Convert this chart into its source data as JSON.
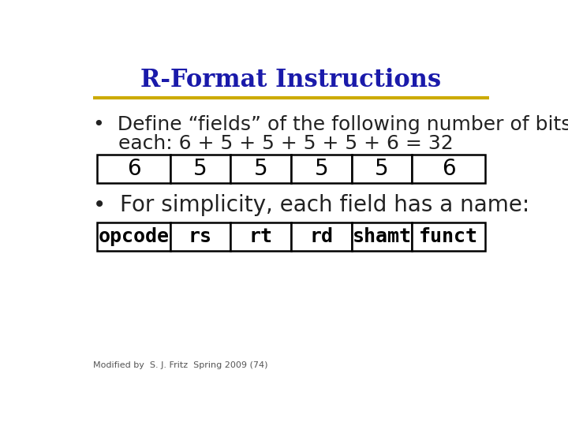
{
  "title": "R-Format Instructions",
  "title_color": "#1a1aaa",
  "title_fontsize": 22,
  "underline_color": "#ccaa00",
  "bullet1_line1": "•  Define “fields” of the following number of bits",
  "bullet1_line2": "    each: 6 + 5 + 5 + 5 + 5 + 6 = 32",
  "bullet1_color": "#222222",
  "fields_color": "#0000cc",
  "bullet2_text": "•  For simplicity, each field has a name:",
  "bullet2_color": "#222222",
  "table1_values": [
    "6",
    "5",
    "5",
    "5",
    "5",
    "6"
  ],
  "table2_values": [
    "opcode",
    "rs",
    "rt",
    "rd",
    "shamt",
    "funct"
  ],
  "table_text_color": "#000000",
  "table_bg_color": "#ffffff",
  "table_border_color": "#000000",
  "footer_text": "Modified by  S. J. Fritz  Spring 2009 (74)",
  "footer_color": "#555555",
  "footer_fontsize": 8,
  "bg_color": "#ffffff",
  "col_widths": [
    1.2,
    1.0,
    1.0,
    1.0,
    1.0,
    1.2
  ],
  "table1_fontsize": 20,
  "table2_fontsize": 18,
  "bullet_fontsize": 18
}
